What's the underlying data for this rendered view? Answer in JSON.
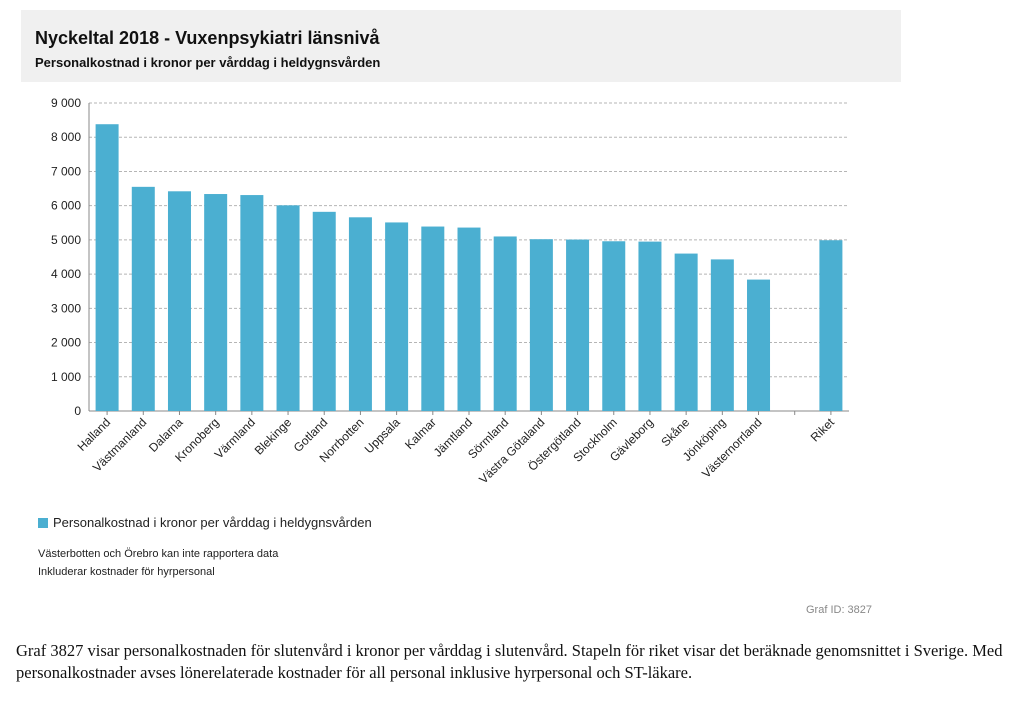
{
  "header": {
    "title": "Nyckeltal 2018 - Vuxenpsykiatri länsnivå",
    "subtitle": "Personalkostnad i kronor per vårddag i heldygnsvården"
  },
  "legend": {
    "label": "Personalkostnad i kronor per vårddag i heldygnsvården",
    "color": "#4bafd1"
  },
  "notes": [
    "Västerbotten och Örebro kan inte rapportera data",
    "Inkluderar kostnader för hyrpersonal"
  ],
  "graf_id": "Graf ID: 3827",
  "caption": "Graf 3827 visar personalkostnaden för slutenvård i kronor per vårddag i slutenvård. Stapeln för riket visar det beräknade genomsnittet i Sverige. Med personalkostnader avses lönerelaterade kostnader för all personal inklusive hyrpersonal och ST-läkare.",
  "chart_data": {
    "type": "bar",
    "categories": [
      "Halland",
      "Västmanland",
      "Dalarna",
      "Kronoberg",
      "Värmland",
      "Blekinge",
      "Gotland",
      "Norrbotten",
      "Uppsala",
      "Kalmar",
      "Jämtland",
      "Sörmland",
      "Västra Götaland",
      "Östergötland",
      "Stockholm",
      "Gävleborg",
      "Skåne",
      "Jönköping",
      "Västernorrland",
      "",
      "Riket"
    ],
    "values": [
      8380,
      6550,
      6420,
      6340,
      6310,
      6010,
      5820,
      5660,
      5510,
      5390,
      5360,
      5100,
      5020,
      5010,
      4960,
      4950,
      4600,
      4430,
      3840,
      null,
      4990
    ],
    "ylim": [
      0,
      9000
    ],
    "yticks": [
      0,
      1000,
      2000,
      3000,
      4000,
      5000,
      6000,
      7000,
      8000,
      9000
    ],
    "ytick_labels": [
      "0",
      "1 000",
      "2 000",
      "3 000",
      "4 000",
      "5 000",
      "6 000",
      "7 000",
      "8 000",
      "9 000"
    ],
    "grid": true,
    "bar_color": "#4bafd1",
    "title": "",
    "xlabel": "",
    "ylabel": ""
  }
}
